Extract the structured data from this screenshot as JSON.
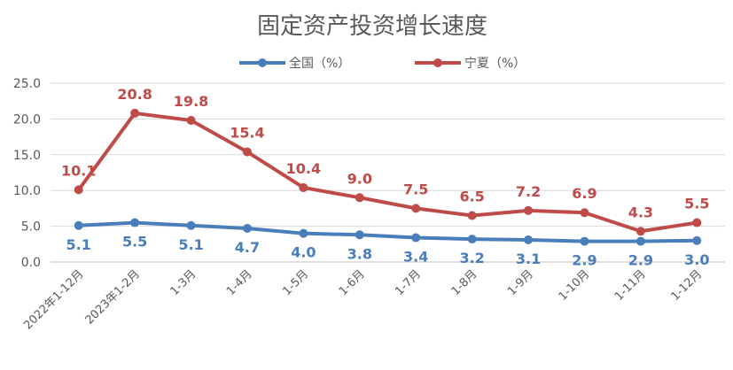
{
  "chart_data": {
    "type": "line",
    "title": "固定资产投资增长速度",
    "categories": [
      "2022年1-12月",
      "2023年1-2月",
      "1-3月",
      "1-4月",
      "1-5月",
      "1-6月",
      "1-7月",
      "1-8月",
      "1-9月",
      "1-10月",
      "1-11月",
      "1-12月"
    ],
    "series": [
      {
        "name": "全国（%）",
        "color": "#4A7EBB",
        "values": [
          5.1,
          5.5,
          5.1,
          4.7,
          4.0,
          3.8,
          3.4,
          3.2,
          3.1,
          2.9,
          2.9,
          3.0
        ],
        "labels": [
          "5.1",
          "5.5",
          "5.1",
          "4.7",
          "4.0",
          "3.8",
          "3.4",
          "3.2",
          "3.1",
          "2.9",
          "2.9",
          "3.0"
        ]
      },
      {
        "name": "宁夏（%）",
        "color": "#BE4B48",
        "values": [
          10.1,
          20.8,
          19.8,
          15.4,
          10.4,
          9.0,
          7.5,
          6.5,
          7.2,
          6.9,
          4.3,
          5.5
        ],
        "labels": [
          "10.1",
          "20.8",
          "19.8",
          "15.4",
          "10.4",
          "9.0",
          "7.5",
          "6.5",
          "7.2",
          "6.9",
          "4.3",
          "5.5"
        ]
      }
    ],
    "ylim": [
      0,
      25
    ],
    "yticks": [
      "0.0",
      "5.0",
      "10.0",
      "15.0",
      "20.0",
      "25.0"
    ],
    "grid": true,
    "legend": "top-center"
  }
}
